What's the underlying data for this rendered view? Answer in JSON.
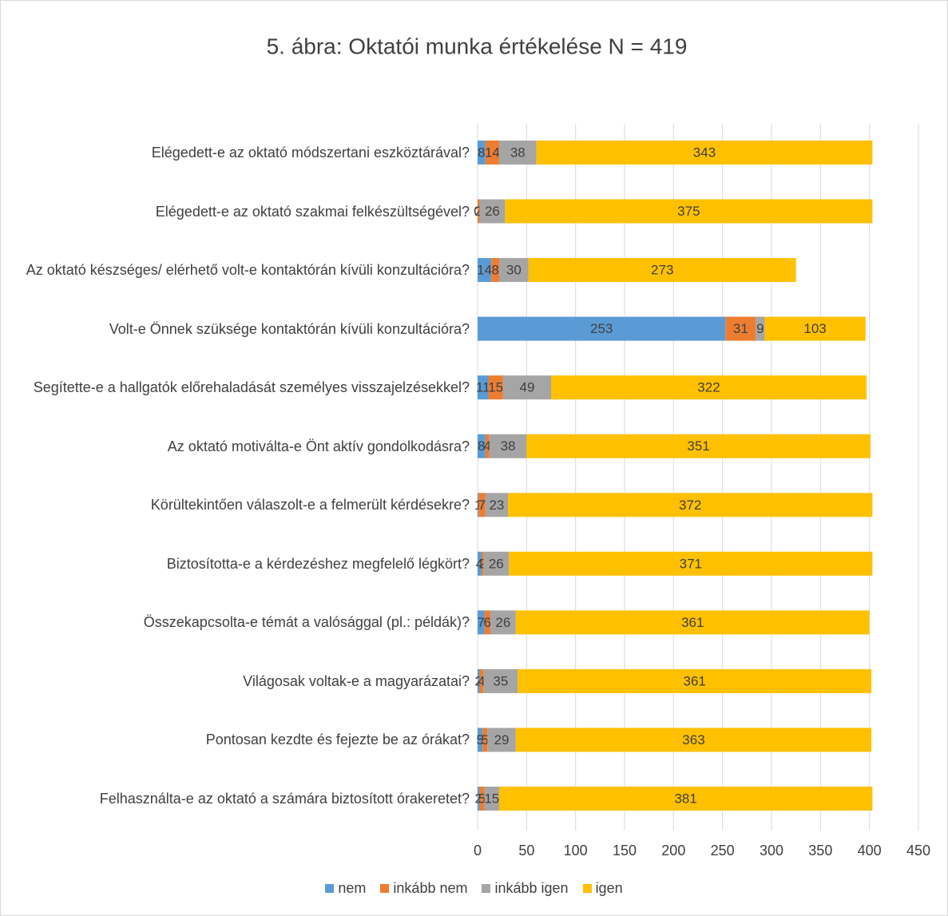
{
  "chart_data": {
    "type": "stacked_barh",
    "title": "5. ábra: Oktatói munka értékelése N = 419",
    "categories": [
      "Elégedett-e az oktató módszertani eszköztárával?",
      "Elégedett-e az oktató szakmai felkészültségével?",
      "Az oktató készséges/ elérhető volt-e kontaktórán kívüli konzultációra?",
      "Volt-e Önnek szüksége kontaktórán kívüli konzultációra?",
      "Segítette-e a hallgatók előrehaladását személyes visszajelzésekkel?",
      "Az oktató motiválta-e Önt aktív gondolkodásra?",
      "Körültekintően válaszolt-e a felmerült kérdésekre?",
      "Biztosította-e a kérdezéshez megfelelő légkört?",
      "Összekapcsolta-e témát a valósággal (pl.: példák)?",
      "Világosak voltak-e a magyarázatai?",
      "Pontosan kezdte és fejezte be az órákat?",
      "Felhasználta-e az oktató a számára biztosított órakeretet?"
    ],
    "series": [
      {
        "name": "nem",
        "color": "#5b9bd5",
        "values": [
          8,
          0,
          14,
          253,
          11,
          8,
          1,
          4,
          7,
          2,
          5,
          2
        ]
      },
      {
        "name": "inkább nem",
        "color": "#ed7d31",
        "values": [
          14,
          2,
          8,
          31,
          15,
          4,
          7,
          2,
          6,
          4,
          5,
          5
        ]
      },
      {
        "name": "inkább igen",
        "color": "#a5a5a5",
        "values": [
          38,
          26,
          30,
          9,
          49,
          38,
          23,
          26,
          26,
          35,
          29,
          15
        ]
      },
      {
        "name": "igen",
        "color": "#ffc000",
        "values": [
          343,
          375,
          273,
          103,
          322,
          351,
          372,
          371,
          361,
          361,
          363,
          381
        ]
      }
    ],
    "xlim": [
      0,
      450
    ],
    "xticks": [
      0,
      50,
      100,
      150,
      200,
      250,
      300,
      350,
      400,
      450
    ],
    "grid": true,
    "legend": "bottom"
  }
}
